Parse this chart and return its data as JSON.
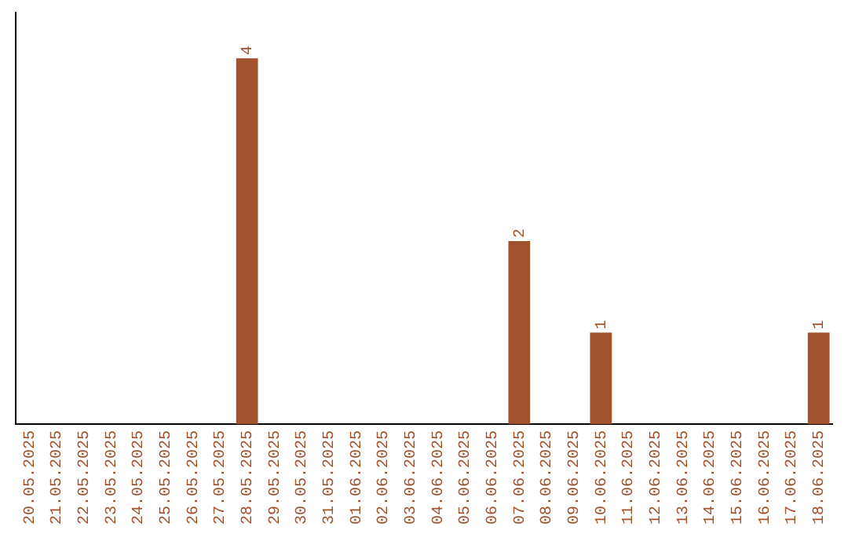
{
  "chart_data": {
    "type": "bar",
    "categories": [
      "20.05.2025",
      "21.05.2025",
      "22.05.2025",
      "23.05.2025",
      "24.05.2025",
      "25.05.2025",
      "26.05.2025",
      "27.05.2025",
      "28.05.2025",
      "29.05.2025",
      "30.05.2025",
      "31.05.2025",
      "01.06.2025",
      "02.06.2025",
      "03.06.2025",
      "04.06.2025",
      "05.06.2025",
      "06.06.2025",
      "07.06.2025",
      "08.06.2025",
      "09.06.2025",
      "10.06.2025",
      "11.06.2025",
      "12.06.2025",
      "13.06.2025",
      "14.06.2025",
      "15.06.2025",
      "16.06.2025",
      "17.06.2025",
      "18.06.2025"
    ],
    "values": [
      0,
      0,
      0,
      0,
      0,
      0,
      0,
      0,
      4,
      0,
      0,
      0,
      0,
      0,
      0,
      0,
      0,
      0,
      2,
      0,
      0,
      1,
      0,
      0,
      0,
      0,
      0,
      0,
      0,
      1
    ],
    "value_labels": [
      null,
      null,
      null,
      null,
      null,
      null,
      null,
      null,
      "4",
      null,
      null,
      null,
      null,
      null,
      null,
      null,
      null,
      null,
      "2",
      null,
      null,
      "1",
      null,
      null,
      null,
      null,
      null,
      null,
      null,
      "1"
    ],
    "color": "#a0522d",
    "tick_labels": "x",
    "grid": false,
    "legend": false
  }
}
